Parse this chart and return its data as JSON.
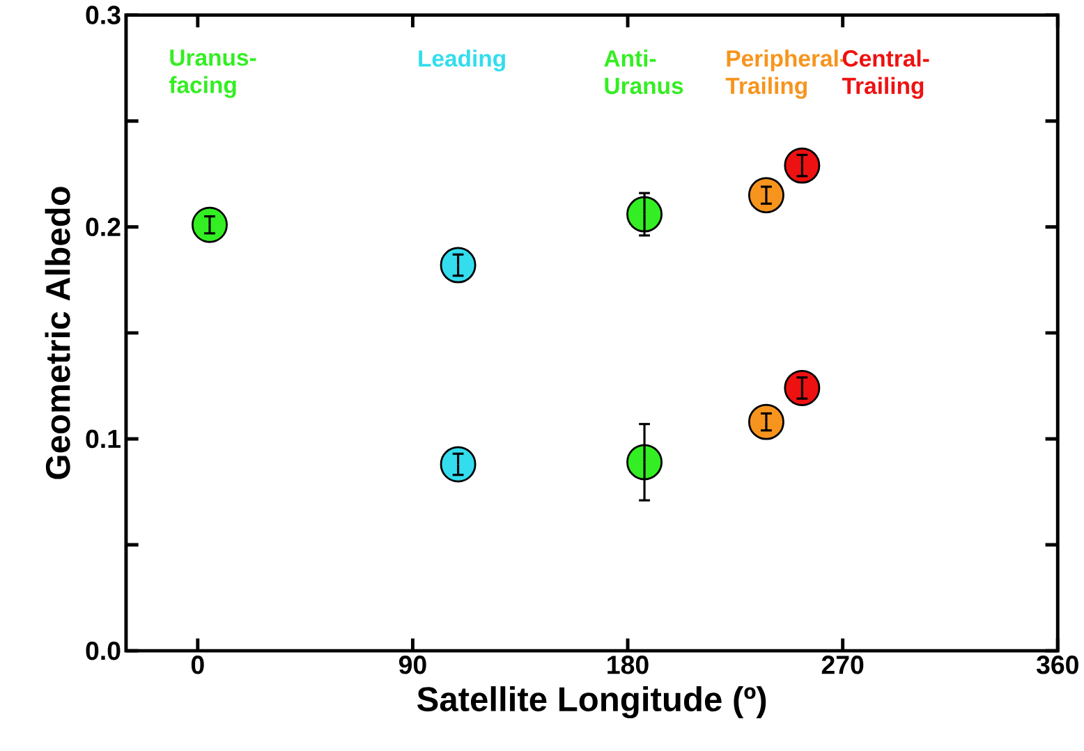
{
  "chart_data": {
    "type": "scatter",
    "xlabel": "Satellite Longitude (º)",
    "ylabel": "Geometric Albedo",
    "xlim": [
      -30,
      360
    ],
    "ylim": [
      0,
      0.3
    ],
    "xticks": [
      0,
      90,
      180,
      270,
      360
    ],
    "yticks": [
      {
        "value": 0,
        "label": "0.0"
      },
      {
        "value": 0.05,
        "label": null
      },
      0.1,
      {
        "value": 0.15,
        "label": null
      },
      0.2,
      {
        "value": 0.25,
        "label": null
      },
      0.3
    ],
    "marker": "circle",
    "legend": "top",
    "series": [
      {
        "name": "Uranus-facing",
        "color": "#33ee22",
        "x": [
          5
        ],
        "values": [
          0.201
        ],
        "errors": [
          0.004
        ]
      },
      {
        "name": "Leading",
        "color": "#33ddee",
        "x": [
          109,
          109
        ],
        "values": [
          0.182,
          0.088
        ],
        "errors": [
          0.005,
          0.005
        ]
      },
      {
        "name": "Anti-Uranus",
        "color": "#33ee22",
        "x": [
          187,
          187
        ],
        "values": [
          0.206,
          0.089
        ],
        "errors": [
          0.01,
          0.018
        ]
      },
      {
        "name": "Peripheral-Trailing",
        "color": "#f7941d",
        "x": [
          238,
          238
        ],
        "values": [
          0.215,
          0.108
        ],
        "errors": [
          0.004,
          0.004
        ]
      },
      {
        "name": "Central-Trailing",
        "color": "#ee1111",
        "x": [
          253,
          253
        ],
        "values": [
          0.229,
          0.124
        ],
        "errors": [
          0.005,
          0.005
        ]
      }
    ]
  }
}
